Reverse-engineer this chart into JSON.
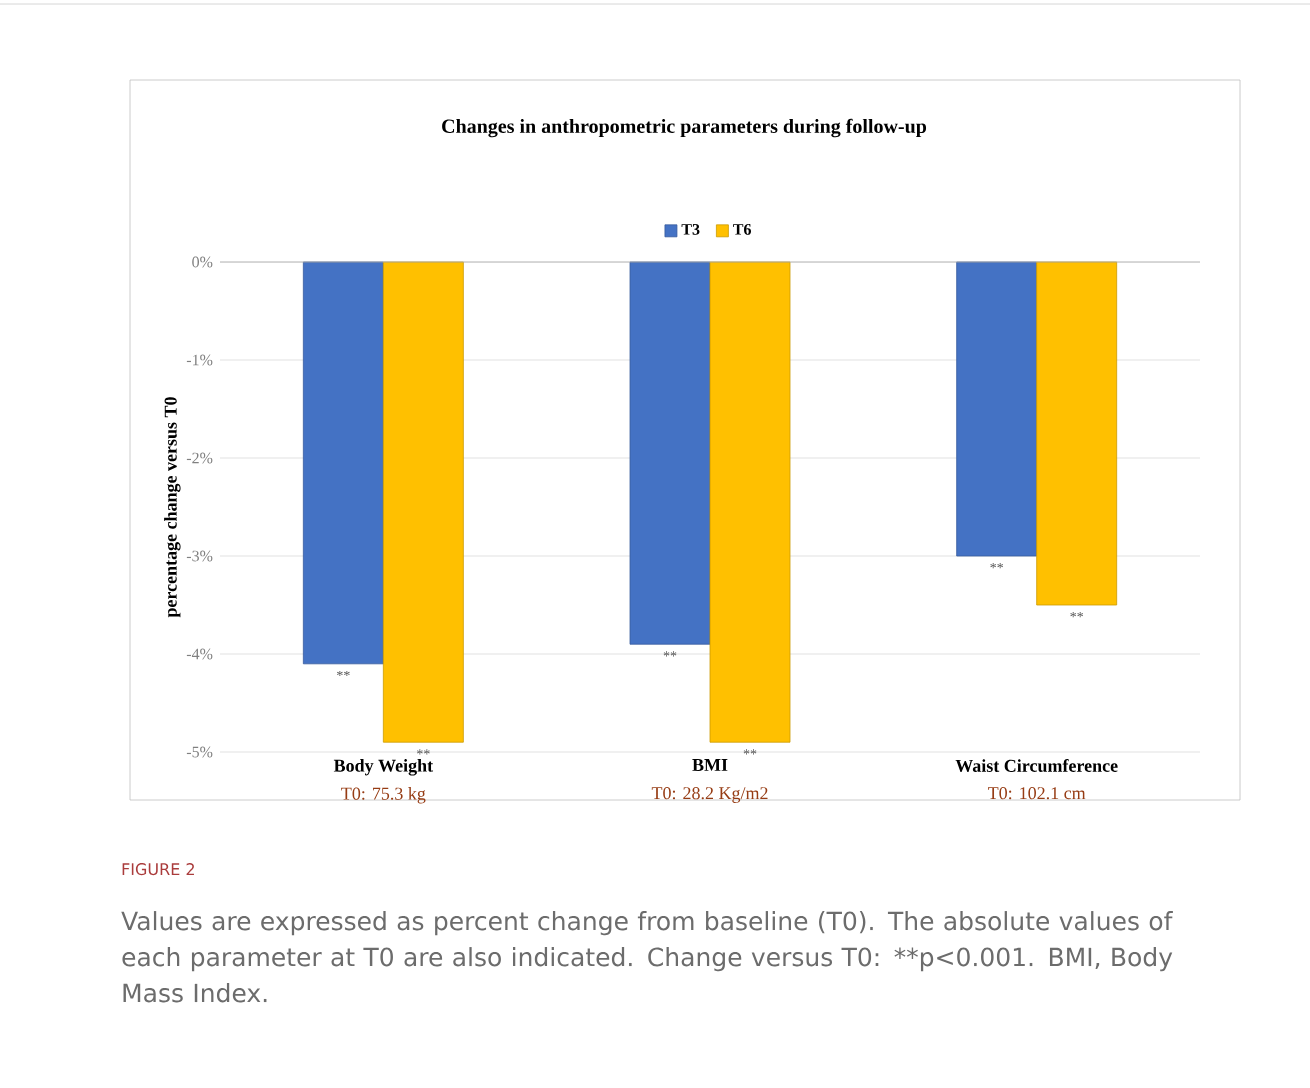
{
  "chart_data": {
    "type": "bar",
    "title": "Changes in anthropometric parameters during follow-up",
    "ylabel": "percentage change versus T0",
    "categories": [
      "Body Weight",
      "BMI",
      "Waist Circumference"
    ],
    "series": [
      {
        "name": "T3",
        "color": "#4472c4",
        "values": [
          -4.1,
          -3.9,
          -3.0
        ]
      },
      {
        "name": "T6",
        "color": "#ffc000",
        "values": [
          -4.9,
          -4.9,
          -3.5
        ]
      }
    ],
    "ylim": [
      -5,
      0
    ],
    "yticks": [
      {
        "value": -5,
        "label": "-5%"
      },
      {
        "value": -4,
        "label": "-4%"
      },
      {
        "value": -3,
        "label": "-3%"
      },
      {
        "value": -2,
        "label": "-2%"
      },
      {
        "value": -1,
        "label": "-1%"
      },
      {
        "value": 0,
        "label": "0%"
      }
    ],
    "grid": "y",
    "legend": "top",
    "annotations": [
      {
        "text": "**",
        "x": "Body Weight",
        "y": -4.1
      },
      {
        "text": "**",
        "x": "Body Weight",
        "y": -4.9
      },
      {
        "text": "**",
        "x": "BMI",
        "y": -3.9
      },
      {
        "text": "**",
        "x": "BMI",
        "y": -4.9
      },
      {
        "text": "**",
        "x": "Waist Circumference",
        "y": -3.0
      },
      {
        "text": "**",
        "x": "Waist Circumference",
        "y": -3.5
      },
      "T0: 75.3 kg",
      "T0: 28.2 Kg/m2",
      "T0: 102.1 cm",
      "FIGURE 2",
      "Values are expressed as percent change from baseline (T0). The absolute values of each parameter at T0 are also indicated. Change versus T0: **p<0.001. BMI, Body Mass Index."
    ]
  }
}
